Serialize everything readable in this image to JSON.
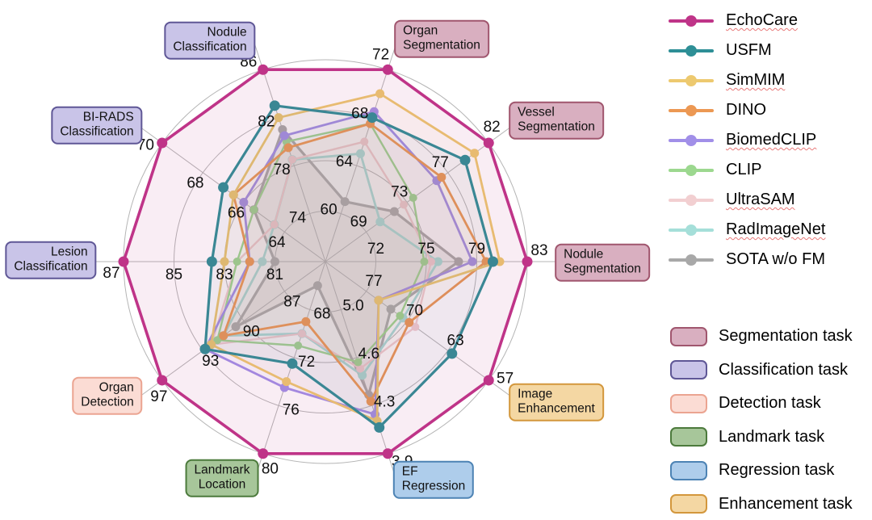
{
  "chart_data": {
    "type": "radar",
    "rings": [
      0.25,
      0.5,
      0.75,
      1
    ],
    "grid_color": "#b5b5b5",
    "tick_color": "#111111",
    "axes": [
      {
        "label": "Nodule Segmentation",
        "task": "segmentation",
        "angle_deg": 0,
        "ticks": [
          "83",
          "79",
          "75",
          "72"
        ],
        "outer": 83,
        "center": 68.3
      },
      {
        "label": "Vessel Segmentation",
        "task": "segmentation",
        "angle_deg": 36,
        "ticks": [
          "82",
          "77",
          "73",
          "69"
        ],
        "outer": 82,
        "center": 64.7
      },
      {
        "label": "Organ Segmentation",
        "task": "segmentation",
        "angle_deg": 72,
        "ticks": [
          "72",
          "68",
          "64",
          "60"
        ],
        "outer": 72,
        "center": 56
      },
      {
        "label": "Nodule Classification",
        "task": "classification",
        "angle_deg": 108,
        "ticks": [
          "86",
          "82",
          "78",
          "74"
        ],
        "outer": 86,
        "center": 70
      },
      {
        "label": "BI-RADS Classification",
        "task": "classification",
        "angle_deg": 144,
        "ticks": [
          "70",
          "68",
          "66",
          "64"
        ],
        "outer": 70,
        "center": 62
      },
      {
        "label": "Lesion Classification",
        "task": "classification",
        "angle_deg": 180,
        "ticks": [
          "87",
          "85",
          "83",
          "81"
        ],
        "outer": 87,
        "center": 79
      },
      {
        "label": "Organ Detection",
        "task": "detection",
        "angle_deg": 216,
        "ticks": [
          "97",
          "93",
          "90",
          "87"
        ],
        "outer": 97,
        "center": 83.7
      },
      {
        "label": "Landmark Location",
        "task": "landmark",
        "angle_deg": 252,
        "ticks": [
          "80",
          "76",
          "72",
          "68"
        ],
        "outer": 80,
        "center": 64
      },
      {
        "label": "EF Regression",
        "task": "regression",
        "angle_deg": 288,
        "ticks": [
          "3.9",
          "4.3",
          "4.6",
          "5.0"
        ],
        "outer": 3.9,
        "center": 5.37
      },
      {
        "label": "Image Enhancement",
        "task": "enhancement",
        "angle_deg": 324,
        "ticks": [
          "57",
          "63",
          "70",
          "77"
        ],
        "outer": 57,
        "center": 83.7
      }
    ],
    "series": [
      {
        "name": "EchoCare",
        "color": "#BF3488",
        "underline": true,
        "line_width": 3.6,
        "marker_r": 6.5,
        "fill_opacity": 0.09,
        "values": [
          83,
          82,
          72,
          86,
          70,
          87,
          97,
          80,
          3.9,
          57
        ]
      },
      {
        "name": "USFM",
        "color": "#2E8F96",
        "underline": false,
        "line_width": 3.2,
        "marker_r": 6.5,
        "fill_opacity": 0.05,
        "values": [
          80.5,
          79.5,
          68,
          83,
          67,
          83.5,
          93.5,
          72.5,
          4.1,
          63
        ]
      },
      {
        "name": "SimMIM",
        "color": "#EDC96F",
        "underline": true,
        "line_width": 2.8,
        "marker_r": 5.5,
        "fill_opacity": 0.05,
        "values": [
          81,
          80.5,
          70,
          82,
          66.5,
          83,
          93,
          74,
          4.15,
          75
        ]
      },
      {
        "name": "DINO",
        "color": "#EC9853",
        "underline": false,
        "line_width": 2.8,
        "marker_r": 5.5,
        "fill_opacity": 0.05,
        "values": [
          80,
          77,
          67.5,
          79.5,
          66.5,
          82,
          92,
          69,
          4.3,
          70
        ]
      },
      {
        "name": "BiomedCLIP",
        "color": "#A18FE8",
        "underline": true,
        "line_width": 2.8,
        "marker_r": 5.5,
        "fill_opacity": 0.05,
        "values": [
          79,
          76.5,
          68.5,
          80.5,
          66,
          82,
          93.5,
          74.5,
          4.2,
          75
        ]
      },
      {
        "name": "CLIP",
        "color": "#9CD88F",
        "underline": false,
        "line_width": 2.4,
        "marker_r": 5,
        "fill_opacity": 0.05,
        "values": [
          75.5,
          74,
          67.5,
          80,
          65.5,
          82.5,
          92.5,
          71,
          4.6,
          71.5
        ]
      },
      {
        "name": "UltraSAM",
        "color": "#F2CFD1",
        "underline": true,
        "line_width": 2.4,
        "marker_r": 5,
        "fill_opacity": 0.05,
        "values": [
          76,
          73,
          66,
          78.5,
          64.5,
          82.5,
          93,
          70,
          4.55,
          69
        ]
      },
      {
        "name": "RadImageNet",
        "color": "#A5DFD9",
        "underline": true,
        "line_width": 2.8,
        "marker_r": 5.5,
        "fill_opacity": 0.05,
        "values": [
          76.5,
          70.5,
          65,
          78.5,
          64.5,
          81.5,
          92,
          70,
          4.5,
          71
        ]
      },
      {
        "name": "SOTA w/o FM",
        "color": "#A8A8A8",
        "underline": false,
        "line_width": 3.2,
        "marker_r": 5.5,
        "fill_opacity": 0.16,
        "values": [
          78,
          72,
          61,
          81,
          65.5,
          81,
          91,
          66,
          4.35,
          73
        ]
      }
    ]
  },
  "tasks": {
    "segmentation": {
      "label": "Segmentation task",
      "fill": "#D9AFC0",
      "border": "#A0566E"
    },
    "classification": {
      "label": "Classification task",
      "fill": "#C9C4E8",
      "border": "#5F5796"
    },
    "detection": {
      "label": "Detection task",
      "fill": "#FBDCD4",
      "border": "#EBA491"
    },
    "landmark": {
      "label": "Landmark task",
      "fill": "#A7C69A",
      "border": "#4C7A3C"
    },
    "regression": {
      "label": "Regression task",
      "fill": "#AECDEB",
      "border": "#4D83B4"
    },
    "enhancement": {
      "label": "Enhancement task",
      "fill": "#F4D7A3",
      "border": "#D3973C"
    }
  },
  "task_legend_order": [
    "segmentation",
    "classification",
    "detection",
    "landmark",
    "regression",
    "enhancement"
  ]
}
